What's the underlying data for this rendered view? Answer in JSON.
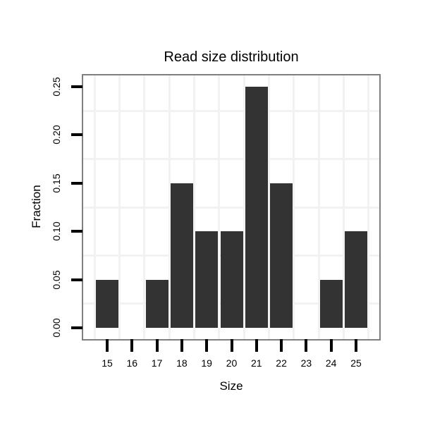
{
  "chart_data": {
    "type": "bar",
    "title": "Read size distribution",
    "xlabel": "Size",
    "ylabel": "Fraction",
    "categories": [
      "15",
      "16",
      "17",
      "18",
      "19",
      "20",
      "21",
      "22",
      "23",
      "24",
      "25"
    ],
    "values": [
      0.05,
      0,
      0.05,
      0.15,
      0.1,
      0.1,
      0.25,
      0.15,
      0,
      0.05,
      0.1
    ],
    "ytick_labels": [
      "0.00",
      "0.05",
      "0.10",
      "0.15",
      "0.20",
      "0.25"
    ],
    "ytick_values": [
      0.0,
      0.05,
      0.1,
      0.15,
      0.2,
      0.25
    ],
    "ylim": [
      0,
      0.26
    ],
    "bar_color": "#333333",
    "panel_border_color": "#7f7f7f",
    "grid_color": "#f2f2f2",
    "tick_color": "#000000",
    "grid": "minor gridlines only, at half-steps between ticks",
    "legend": "none"
  }
}
